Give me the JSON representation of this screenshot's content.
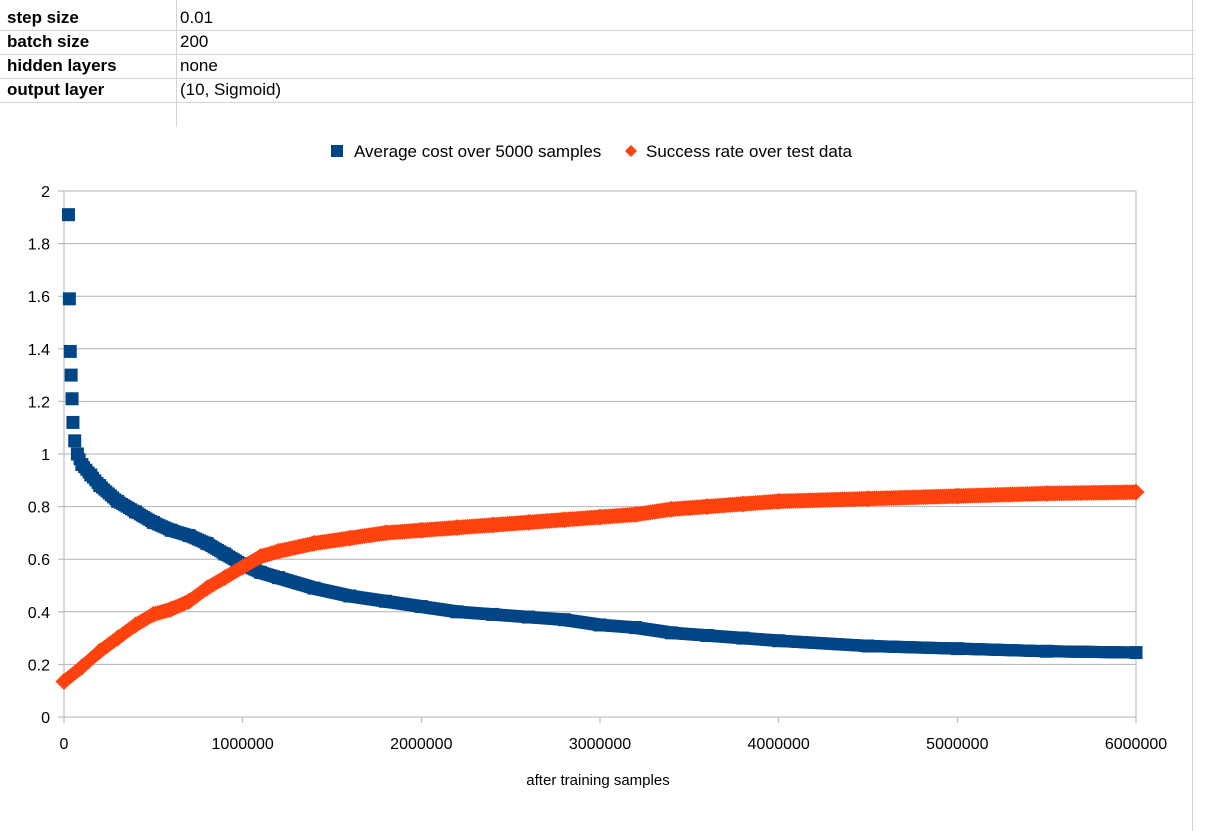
{
  "params": [
    {
      "label": "step size",
      "value": "0.01"
    },
    {
      "label": "batch size",
      "value": "200"
    },
    {
      "label": "hidden layers",
      "value": "none"
    },
    {
      "label": "output layer",
      "value": "(10, Sigmoid)"
    }
  ],
  "chart_data": {
    "type": "scatter",
    "title": "",
    "xlabel": "after training samples",
    "ylabel": "",
    "xlim": [
      0,
      6000000
    ],
    "ylim": [
      0,
      2
    ],
    "x_ticks": [
      0,
      1000000,
      2000000,
      3000000,
      4000000,
      5000000,
      6000000
    ],
    "y_ticks": [
      0,
      0.2,
      0.4,
      0.6,
      0.8,
      1,
      1.2,
      1.4,
      1.6,
      1.8,
      2
    ],
    "x_tick_labels": [
      "0",
      "1000000",
      "2000000",
      "3000000",
      "4000000",
      "5000000",
      "6000000"
    ],
    "y_tick_labels": [
      "0",
      "0.2",
      "0.4",
      "0.6",
      "0.8",
      "1",
      "1.2",
      "1.4",
      "1.6",
      "1.8",
      "2"
    ],
    "grid": true,
    "legend_position": "top",
    "series": [
      {
        "name": "Average cost over 5000 samples",
        "marker": "square",
        "color": "#004586",
        "x": [
          25000,
          30000,
          35000,
          40000,
          45000,
          50000,
          60000,
          75000,
          100000,
          150000,
          200000,
          300000,
          400000,
          500000,
          600000,
          700000,
          800000,
          900000,
          1000000,
          1100000,
          1200000,
          1400000,
          1600000,
          1800000,
          2000000,
          2200000,
          2400000,
          2600000,
          2800000,
          3000000,
          3200000,
          3400000,
          3600000,
          3800000,
          4000000,
          4500000,
          5000000,
          5500000,
          6000000
        ],
        "y": [
          1.91,
          1.59,
          1.39,
          1.3,
          1.21,
          1.12,
          1.05,
          1.0,
          0.96,
          0.92,
          0.88,
          0.82,
          0.78,
          0.74,
          0.71,
          0.69,
          0.66,
          0.62,
          0.58,
          0.55,
          0.53,
          0.49,
          0.46,
          0.44,
          0.42,
          0.4,
          0.39,
          0.38,
          0.37,
          0.35,
          0.34,
          0.32,
          0.31,
          0.3,
          0.29,
          0.27,
          0.26,
          0.25,
          0.245
        ]
      },
      {
        "name": "Success rate over test data",
        "marker": "diamond",
        "color": "#ff420e",
        "x": [
          0,
          100000,
          200000,
          300000,
          400000,
          500000,
          600000,
          700000,
          800000,
          900000,
          1000000,
          1100000,
          1200000,
          1400000,
          1600000,
          1800000,
          2000000,
          2200000,
          2400000,
          2600000,
          2800000,
          3000000,
          3200000,
          3400000,
          3600000,
          3800000,
          4000000,
          4500000,
          5000000,
          5500000,
          6000000
        ],
        "y": [
          0.135,
          0.19,
          0.25,
          0.3,
          0.35,
          0.39,
          0.41,
          0.44,
          0.49,
          0.53,
          0.57,
          0.61,
          0.63,
          0.66,
          0.68,
          0.7,
          0.71,
          0.72,
          0.73,
          0.74,
          0.75,
          0.76,
          0.77,
          0.79,
          0.8,
          0.81,
          0.82,
          0.83,
          0.84,
          0.85,
          0.855
        ]
      }
    ]
  }
}
